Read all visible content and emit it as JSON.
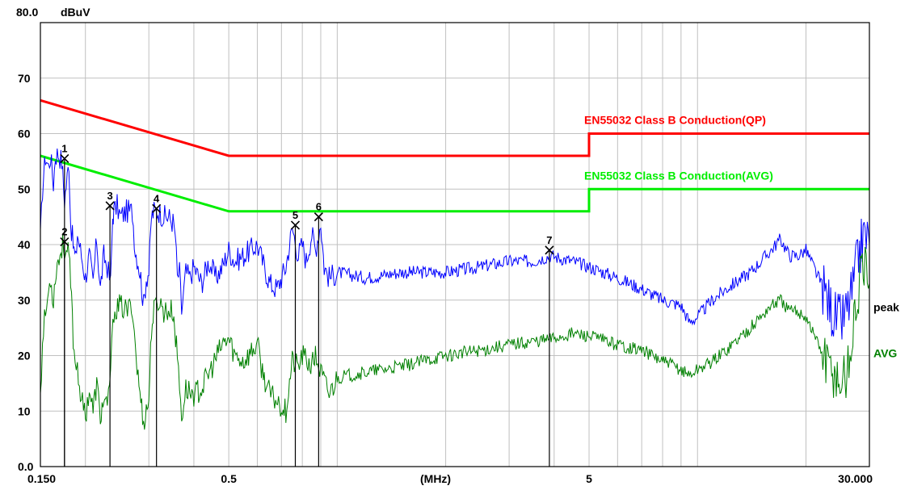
{
  "chart_data": {
    "type": "line",
    "title": "",
    "ylabel": "dBuV",
    "xlabel": "(MHz)",
    "x_scale": "log",
    "xlim": [
      0.15,
      30
    ],
    "ylim": [
      0,
      80
    ],
    "grid": true,
    "y_ticks": [
      {
        "value": 80,
        "label": "80.0"
      },
      {
        "value": 70,
        "label": "70"
      },
      {
        "value": 60,
        "label": "60"
      },
      {
        "value": 50,
        "label": "50"
      },
      {
        "value": 40,
        "label": "40"
      },
      {
        "value": 30,
        "label": "30"
      },
      {
        "value": 20,
        "label": "20"
      },
      {
        "value": 10,
        "label": "10"
      },
      {
        "value": 0,
        "label": "0.0"
      }
    ],
    "x_ticks": [
      {
        "value": 0.15,
        "label": "0.150"
      },
      {
        "value": 0.5,
        "label": "0.5"
      },
      {
        "value": 5,
        "label": "5"
      },
      {
        "value": 30,
        "label": "30.000"
      }
    ],
    "limit_lines": [
      {
        "name": "EN55032 Class B Conduction(QP)",
        "color": "#ff0000",
        "points": [
          [
            0.15,
            66
          ],
          [
            0.5,
            56
          ],
          [
            5,
            56
          ],
          [
            5,
            60
          ],
          [
            30,
            60
          ]
        ]
      },
      {
        "name": "EN55032 Class B Conduction(AVG)",
        "color": "#00ee00",
        "points": [
          [
            0.15,
            56
          ],
          [
            0.5,
            46
          ],
          [
            5,
            46
          ],
          [
            5,
            50
          ],
          [
            30,
            50
          ]
        ]
      }
    ],
    "series": [
      {
        "name": "peak",
        "color": "#0000ff",
        "points": [
          [
            0.15,
            41
          ],
          [
            0.152,
            50
          ],
          [
            0.155,
            56
          ],
          [
            0.158,
            54
          ],
          [
            0.16,
            56
          ],
          [
            0.163,
            51
          ],
          [
            0.165,
            56
          ],
          [
            0.168,
            56.5
          ],
          [
            0.172,
            55
          ],
          [
            0.175,
            48
          ],
          [
            0.178,
            52
          ],
          [
            0.18,
            55
          ],
          [
            0.182,
            44
          ],
          [
            0.185,
            40
          ],
          [
            0.188,
            37
          ],
          [
            0.19,
            42
          ],
          [
            0.195,
            38
          ],
          [
            0.2,
            34
          ],
          [
            0.205,
            38
          ],
          [
            0.21,
            33
          ],
          [
            0.215,
            41
          ],
          [
            0.22,
            32
          ],
          [
            0.225,
            38
          ],
          [
            0.23,
            36
          ],
          [
            0.235,
            33
          ],
          [
            0.238,
            45
          ],
          [
            0.24,
            46
          ],
          [
            0.245,
            47
          ],
          [
            0.25,
            45
          ],
          [
            0.26,
            46
          ],
          [
            0.27,
            46
          ],
          [
            0.275,
            39
          ],
          [
            0.28,
            37
          ],
          [
            0.285,
            34
          ],
          [
            0.29,
            29
          ],
          [
            0.295,
            34
          ],
          [
            0.3,
            35
          ],
          [
            0.305,
            45
          ],
          [
            0.31,
            46
          ],
          [
            0.32,
            46
          ],
          [
            0.33,
            45
          ],
          [
            0.34,
            45
          ],
          [
            0.35,
            44
          ],
          [
            0.355,
            42
          ],
          [
            0.36,
            34
          ],
          [
            0.365,
            35
          ],
          [
            0.37,
            28
          ],
          [
            0.38,
            35
          ],
          [
            0.39,
            34
          ],
          [
            0.4,
            36
          ],
          [
            0.42,
            33
          ],
          [
            0.44,
            37
          ],
          [
            0.46,
            34
          ],
          [
            0.48,
            36
          ],
          [
            0.5,
            39
          ],
          [
            0.52,
            37
          ],
          [
            0.55,
            38
          ],
          [
            0.6,
            40
          ],
          [
            0.62,
            37
          ],
          [
            0.65,
            33
          ],
          [
            0.68,
            32
          ],
          [
            0.7,
            34
          ],
          [
            0.72,
            36
          ],
          [
            0.75,
            43
          ],
          [
            0.78,
            38
          ],
          [
            0.8,
            40
          ],
          [
            0.82,
            37
          ],
          [
            0.85,
            42
          ],
          [
            0.87,
            39
          ],
          [
            0.9,
            44
          ],
          [
            0.92,
            36
          ],
          [
            0.95,
            34
          ],
          [
            1,
            35
          ],
          [
            1.2,
            34
          ],
          [
            1.5,
            35
          ],
          [
            2,
            35
          ],
          [
            2.5,
            36
          ],
          [
            3,
            37
          ],
          [
            3.5,
            37
          ],
          [
            3.9,
            38
          ],
          [
            4.5,
            37
          ],
          [
            5,
            36
          ],
          [
            6,
            34
          ],
          [
            7,
            32
          ],
          [
            8,
            30
          ],
          [
            9,
            29
          ],
          [
            9.5,
            26
          ],
          [
            10,
            27
          ],
          [
            11,
            30
          ],
          [
            12,
            32
          ],
          [
            14,
            35
          ],
          [
            15,
            37
          ],
          [
            16,
            39
          ],
          [
            17,
            41
          ],
          [
            18,
            38
          ],
          [
            19,
            38
          ],
          [
            20,
            39
          ],
          [
            21,
            36
          ],
          [
            22,
            33
          ],
          [
            23,
            30
          ],
          [
            24,
            27
          ],
          [
            25,
            26
          ],
          [
            26,
            28
          ],
          [
            27,
            32
          ],
          [
            28,
            38
          ],
          [
            29,
            42
          ],
          [
            30,
            40
          ]
        ]
      },
      {
        "name": "AVG",
        "color": "#008000",
        "points": [
          [
            0.15,
            14
          ],
          [
            0.153,
            25
          ],
          [
            0.157,
            30
          ],
          [
            0.16,
            34
          ],
          [
            0.163,
            30
          ],
          [
            0.166,
            36
          ],
          [
            0.17,
            38
          ],
          [
            0.173,
            40
          ],
          [
            0.176,
            39
          ],
          [
            0.18,
            38
          ],
          [
            0.183,
            30
          ],
          [
            0.186,
            20
          ],
          [
            0.19,
            18
          ],
          [
            0.195,
            12
          ],
          [
            0.2,
            9
          ],
          [
            0.205,
            14
          ],
          [
            0.21,
            10
          ],
          [
            0.215,
            15
          ],
          [
            0.22,
            9
          ],
          [
            0.225,
            12
          ],
          [
            0.23,
            10
          ],
          [
            0.235,
            18
          ],
          [
            0.24,
            28
          ],
          [
            0.25,
            29
          ],
          [
            0.26,
            28
          ],
          [
            0.27,
            29
          ],
          [
            0.275,
            22
          ],
          [
            0.28,
            16
          ],
          [
            0.285,
            12
          ],
          [
            0.29,
            8
          ],
          [
            0.295,
            10
          ],
          [
            0.3,
            12
          ],
          [
            0.305,
            25
          ],
          [
            0.31,
            28
          ],
          [
            0.32,
            30
          ],
          [
            0.33,
            28
          ],
          [
            0.34,
            28
          ],
          [
            0.35,
            28
          ],
          [
            0.36,
            20
          ],
          [
            0.37,
            9
          ],
          [
            0.38,
            14
          ],
          [
            0.4,
            13
          ],
          [
            0.42,
            14
          ],
          [
            0.45,
            18
          ],
          [
            0.48,
            22
          ],
          [
            0.5,
            23
          ],
          [
            0.52,
            20
          ],
          [
            0.55,
            19
          ],
          [
            0.6,
            22
          ],
          [
            0.62,
            17
          ],
          [
            0.65,
            13
          ],
          [
            0.7,
            11
          ],
          [
            0.72,
            10
          ],
          [
            0.75,
            19
          ],
          [
            0.78,
            18
          ],
          [
            0.8,
            20
          ],
          [
            0.85,
            18
          ],
          [
            0.87,
            20
          ],
          [
            0.9,
            17
          ],
          [
            0.95,
            13
          ],
          [
            1,
            16
          ],
          [
            1.2,
            17
          ],
          [
            1.5,
            18
          ],
          [
            2,
            20
          ],
          [
            2.5,
            21
          ],
          [
            3,
            22
          ],
          [
            3.9,
            23
          ],
          [
            4.5,
            24
          ],
          [
            5,
            23.5
          ],
          [
            6,
            22
          ],
          [
            7,
            21
          ],
          [
            8,
            19
          ],
          [
            9,
            17.5
          ],
          [
            9.5,
            16.5
          ],
          [
            10,
            17.5
          ],
          [
            11,
            19
          ],
          [
            12,
            21
          ],
          [
            14,
            25
          ],
          [
            15,
            27
          ],
          [
            16,
            29
          ],
          [
            17,
            30
          ],
          [
            18,
            28
          ],
          [
            19,
            28
          ],
          [
            20,
            27
          ],
          [
            21,
            24
          ],
          [
            22,
            21
          ],
          [
            23,
            18
          ],
          [
            24,
            17
          ],
          [
            25,
            15
          ],
          [
            26,
            17
          ],
          [
            27,
            24
          ],
          [
            28,
            32
          ],
          [
            29,
            36
          ],
          [
            30,
            33
          ]
        ]
      }
    ],
    "markers": [
      {
        "label": "1",
        "x": 0.175,
        "y": 55.5
      },
      {
        "label": "2",
        "x": 0.175,
        "y": 40.5
      },
      {
        "label": "3",
        "x": 0.234,
        "y": 47
      },
      {
        "label": "4",
        "x": 0.315,
        "y": 46.5
      },
      {
        "label": "5",
        "x": 0.765,
        "y": 43.5
      },
      {
        "label": "6",
        "x": 0.888,
        "y": 45
      },
      {
        "label": "7",
        "x": 3.88,
        "y": 39
      }
    ]
  }
}
